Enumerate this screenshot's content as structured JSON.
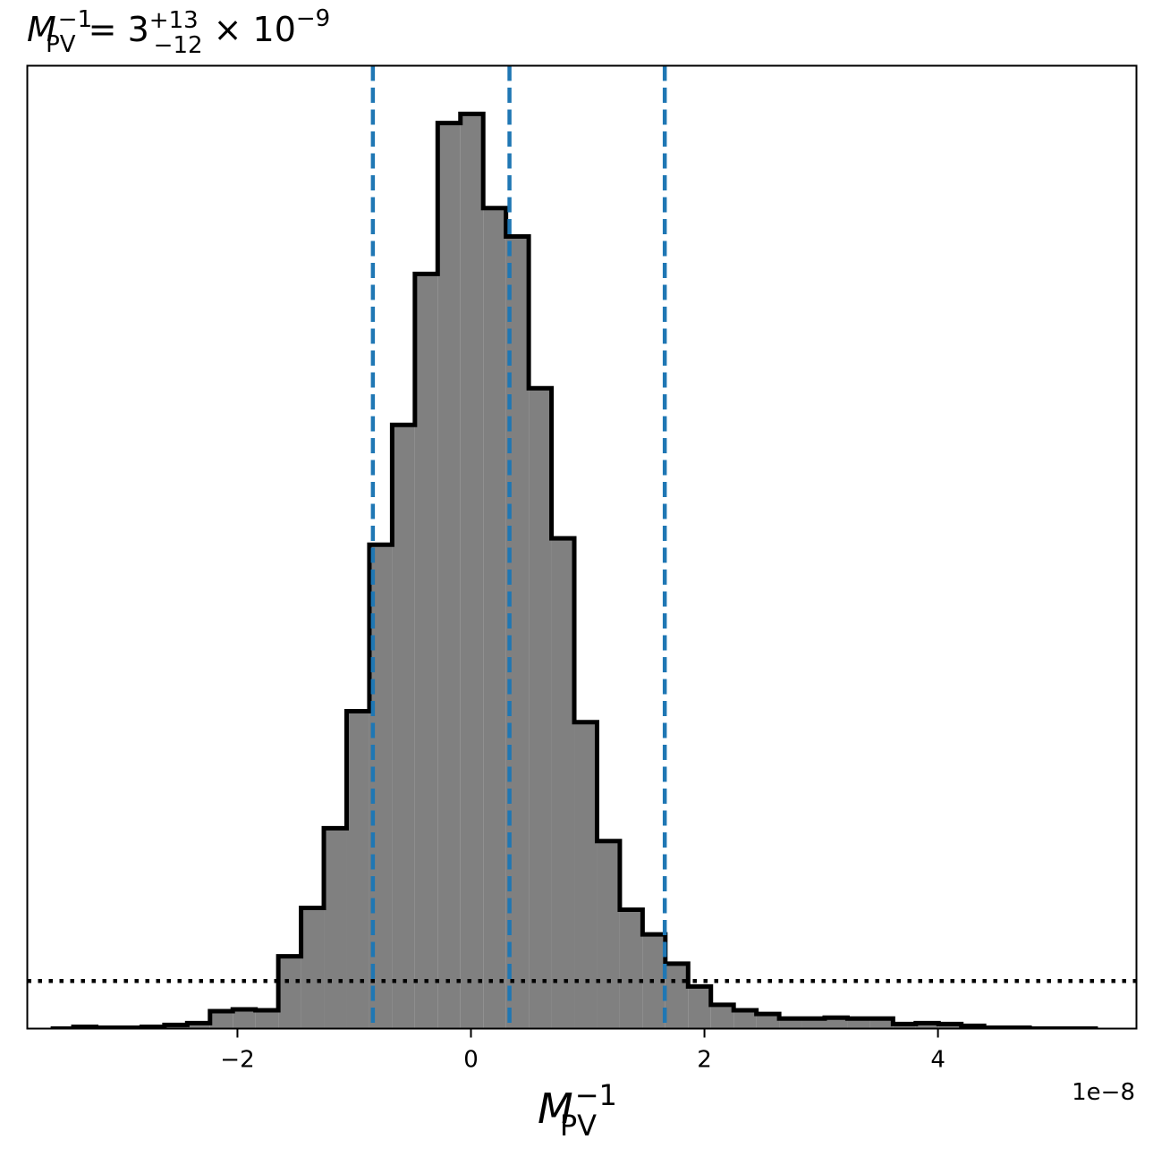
{
  "chart_data": {
    "type": "histogram",
    "title": {
      "var": "M",
      "var_sub": "PV",
      "var_sup": "−1",
      "eq": " = 3",
      "err_plus": "+13",
      "err_minus": "−12",
      "times": " × 10",
      "exp": "−9"
    },
    "xlabel": {
      "var": "M",
      "sub": "PV",
      "sup": "−1"
    },
    "x_offset_text": "1e−8",
    "xlim": [
      -3.8,
      5.7
    ],
    "ylim": [
      0,
      1.0
    ],
    "xticks": [
      {
        "value": -2,
        "label": "−2"
      },
      {
        "value": 0,
        "label": "0"
      },
      {
        "value": 2,
        "label": "2"
      },
      {
        "value": 4,
        "label": "4"
      }
    ],
    "yticks_shown": false,
    "bins": {
      "edges_start": -3.6,
      "width": 0.195,
      "heights": [
        0.0,
        0.002,
        0.001,
        0.001,
        0.002,
        0.004,
        0.006,
        0.019,
        0.021,
        0.02,
        0.079,
        0.132,
        0.219,
        0.347,
        0.529,
        0.66,
        0.825,
        0.99,
        1.0,
        0.897,
        0.866,
        0.7,
        0.536,
        0.335,
        0.205,
        0.13,
        0.103,
        0.071,
        0.046,
        0.026,
        0.02,
        0.016,
        0.011,
        0.011,
        0.012,
        0.011,
        0.011,
        0.005,
        0.006,
        0.005,
        0.003,
        0.001,
        0.001,
        0.0,
        0.0,
        0.0
      ]
    },
    "fill_color": "#808080",
    "edge_color": "#000000",
    "vlines": {
      "values": [
        -0.84,
        0.33,
        1.66
      ],
      "color": "#1f77b4",
      "style": "dashed"
    },
    "hline": {
      "value": 0.052,
      "color": "#000000",
      "style": "dotted"
    }
  }
}
